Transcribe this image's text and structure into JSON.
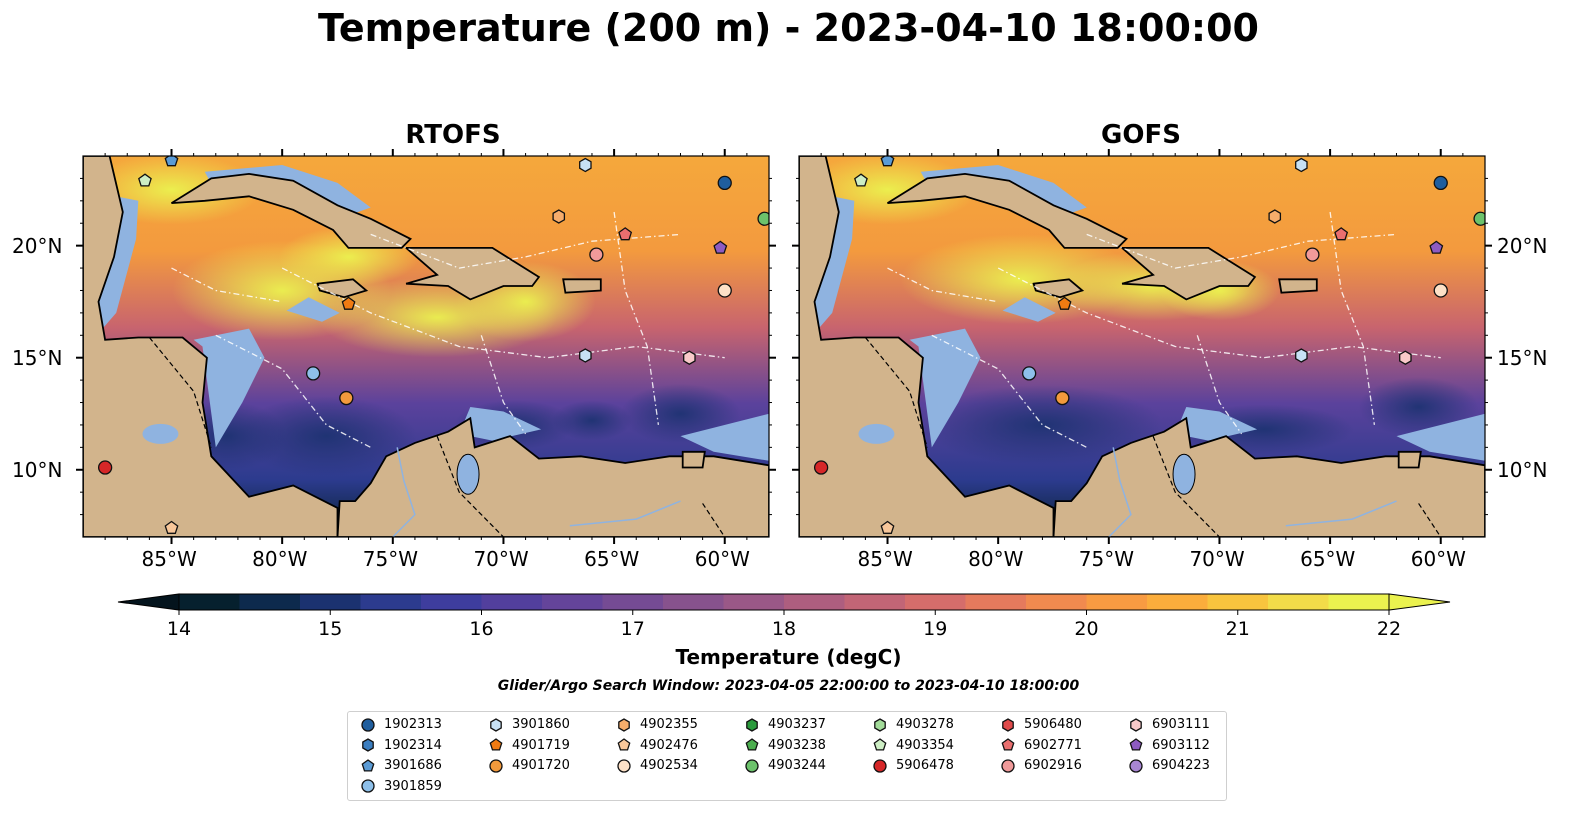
{
  "title": "Temperature (200 m) - 2023-04-10 18:00:00",
  "panels": [
    {
      "title": "RTOFS",
      "left_labels": true,
      "right_labels": false
    },
    {
      "title": "GOFS",
      "left_labels": false,
      "right_labels": true
    }
  ],
  "map": {
    "lon_range": [
      -89,
      -58
    ],
    "lat_range": [
      7,
      24
    ],
    "lon_ticks": [
      "85°W",
      "80°W",
      "75°W",
      "70°W",
      "65°W",
      "60°W"
    ],
    "lat_ticks": [
      "20°N",
      "15°N",
      "10°N"
    ],
    "colors": {
      "land": "#d2b48c",
      "shelf": "#8fb3e0",
      "deep": "#06202e"
    }
  },
  "colorbar": {
    "label": "Temperature (degC)",
    "min": 14,
    "max": 22,
    "ticks": [
      "14",
      "15",
      "16",
      "17",
      "18",
      "19",
      "20",
      "21",
      "22"
    ],
    "colors": [
      "#06202e",
      "#0d2a4d",
      "#1b3270",
      "#2c3b8e",
      "#3e3d9e",
      "#523f9d",
      "#64449a",
      "#754b94",
      "#87528d",
      "#9a5887",
      "#ae5e7f",
      "#c26576",
      "#d56d6b",
      "#e57a5d",
      "#f18a4f",
      "#f89b42",
      "#fbad3c",
      "#f8c43e",
      "#f2dc49",
      "#ebf24f"
    ]
  },
  "search_window": "Glider/Argo Search Window: 2023-04-05 22:00:00 to 2023-04-10 18:00:00",
  "legend": [
    {
      "label": "1902313",
      "marker": "circle",
      "color": "#1f5e9e"
    },
    {
      "label": "1902314",
      "marker": "hexagon",
      "color": "#3b7ec0"
    },
    {
      "label": "3901686",
      "marker": "pentagon",
      "color": "#5b9bd5"
    },
    {
      "label": "3901859",
      "marker": "circle",
      "color": "#8ec0ea"
    },
    {
      "label": "3901860",
      "marker": "hexagon",
      "color": "#c7e1f5"
    },
    {
      "label": "4901719",
      "marker": "pentagon",
      "color": "#f07b12"
    },
    {
      "label": "4901720",
      "marker": "circle",
      "color": "#f39a3c"
    },
    {
      "label": "4902355",
      "marker": "hexagon",
      "color": "#f6ad6b"
    },
    {
      "label": "4902476",
      "marker": "pentagon",
      "color": "#f8c79a"
    },
    {
      "label": "4902534",
      "marker": "circle",
      "color": "#fde1c7"
    },
    {
      "label": "4903237",
      "marker": "hexagon",
      "color": "#2a9a3c"
    },
    {
      "label": "4903238",
      "marker": "pentagon",
      "color": "#4cae4f"
    },
    {
      "label": "4903244",
      "marker": "circle",
      "color": "#6cc26b"
    },
    {
      "label": "4903278",
      "marker": "hexagon",
      "color": "#a3dc9a"
    },
    {
      "label": "4903354",
      "marker": "pentagon",
      "color": "#cdeec4"
    },
    {
      "label": "5906478",
      "marker": "circle",
      "color": "#d62728"
    },
    {
      "label": "5906480",
      "marker": "hexagon",
      "color": "#e04a4a"
    },
    {
      "label": "6902771",
      "marker": "pentagon",
      "color": "#ea6f6f"
    },
    {
      "label": "6902916",
      "marker": "circle",
      "color": "#f09a9a"
    },
    {
      "label": "6903111",
      "marker": "hexagon",
      "color": "#f9c9c9"
    },
    {
      "label": "6903112",
      "marker": "pentagon",
      "color": "#8d5bc1"
    },
    {
      "label": "6904223",
      "marker": "circle",
      "color": "#a886d3"
    }
  ],
  "floats": [
    {
      "label": "1902313",
      "lon": -60.0,
      "lat": 22.8
    },
    {
      "label": "4903244",
      "lon": -58.2,
      "lat": 21.2
    },
    {
      "label": "3901686",
      "lon": -85.0,
      "lat": 23.8
    },
    {
      "label": "4903354",
      "lon": -86.2,
      "lat": 22.9
    },
    {
      "label": "3901860",
      "lon": -66.3,
      "lat": 23.6
    },
    {
      "label": "4902355",
      "lon": -67.5,
      "lat": 21.3
    },
    {
      "label": "6902771",
      "lon": -64.5,
      "lat": 20.5
    },
    {
      "label": "6902916",
      "lon": -65.8,
      "lat": 19.6
    },
    {
      "label": "6903112",
      "lon": -60.2,
      "lat": 19.9
    },
    {
      "label": "4902534",
      "lon": -60.0,
      "lat": 18.0
    },
    {
      "label": "6903111",
      "lon": -61.6,
      "lat": 15.0
    },
    {
      "label": "4901719",
      "lon": -77.0,
      "lat": 17.4
    },
    {
      "label": "3901860",
      "lon": -66.3,
      "lat": 15.1
    },
    {
      "label": "3901859",
      "lon": -78.6,
      "lat": 14.3
    },
    {
      "label": "4901720",
      "lon": -77.1,
      "lat": 13.2
    },
    {
      "label": "5906478",
      "lon": -88.0,
      "lat": 10.1
    },
    {
      "label": "4902476",
      "lon": -85.0,
      "lat": 7.4
    }
  ]
}
